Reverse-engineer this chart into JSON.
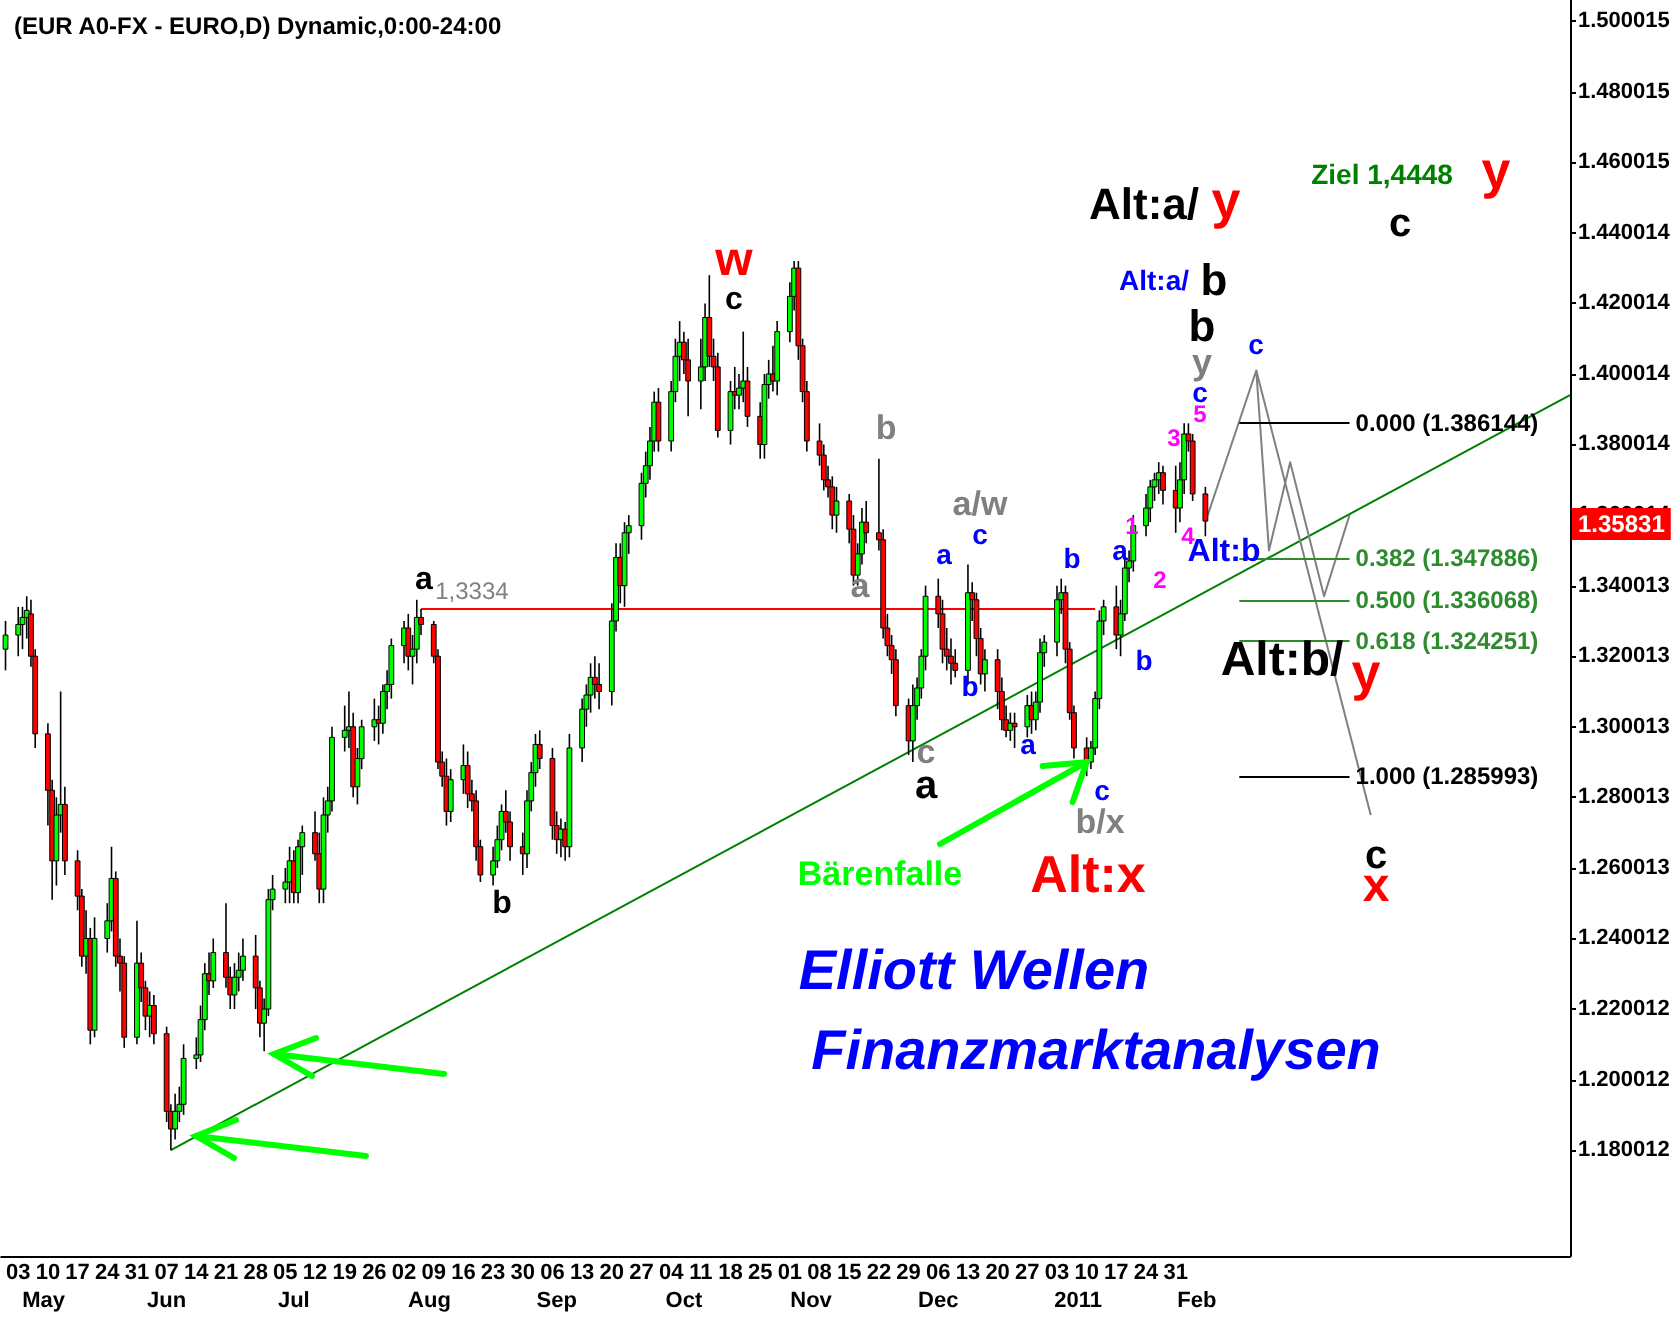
{
  "chart_data": {
    "type": "candlestick",
    "title": "(EUR A0-FX - EURO,D) Dynamic,0:00-24:00",
    "x": [
      "2010-04-30",
      "2010-05-03",
      "2010-05-04",
      "2010-05-05",
      "2010-05-06",
      "2010-05-07",
      "2010-05-10",
      "2010-05-11",
      "2010-05-12",
      "2010-05-13",
      "2010-05-14",
      "2010-05-17",
      "2010-05-18",
      "2010-05-19",
      "2010-05-20",
      "2010-05-21",
      "2010-05-24",
      "2010-05-25",
      "2010-05-26",
      "2010-05-27",
      "2010-05-28",
      "2010-05-31",
      "2010-06-01",
      "2010-06-02",
      "2010-06-03",
      "2010-06-04",
      "2010-06-07",
      "2010-06-08",
      "2010-06-09",
      "2010-06-10",
      "2010-06-11",
      "2010-06-14",
      "2010-06-15",
      "2010-06-16",
      "2010-06-17",
      "2010-06-18",
      "2010-06-21",
      "2010-06-22",
      "2010-06-23",
      "2010-06-24",
      "2010-06-25",
      "2010-06-28",
      "2010-06-29",
      "2010-06-30",
      "2010-07-01",
      "2010-07-02",
      "2010-07-05",
      "2010-07-06",
      "2010-07-07",
      "2010-07-08",
      "2010-07-09",
      "2010-07-12",
      "2010-07-13",
      "2010-07-14",
      "2010-07-15",
      "2010-07-16",
      "2010-07-19",
      "2010-07-20",
      "2010-07-21",
      "2010-07-22",
      "2010-07-23",
      "2010-07-26",
      "2010-07-27",
      "2010-07-28",
      "2010-07-29",
      "2010-07-30",
      "2010-08-02",
      "2010-08-03",
      "2010-08-04",
      "2010-08-05",
      "2010-08-06",
      "2010-08-09",
      "2010-08-10",
      "2010-08-11",
      "2010-08-12",
      "2010-08-13",
      "2010-08-16",
      "2010-08-17",
      "2010-08-18",
      "2010-08-19",
      "2010-08-20",
      "2010-08-23",
      "2010-08-24",
      "2010-08-25",
      "2010-08-26",
      "2010-08-27",
      "2010-08-30",
      "2010-08-31",
      "2010-09-01",
      "2010-09-02",
      "2010-09-03",
      "2010-09-06",
      "2010-09-07",
      "2010-09-08",
      "2010-09-09",
      "2010-09-10",
      "2010-09-13",
      "2010-09-14",
      "2010-09-15",
      "2010-09-16",
      "2010-09-17",
      "2010-09-20",
      "2010-09-21",
      "2010-09-22",
      "2010-09-23",
      "2010-09-24",
      "2010-09-27",
      "2010-09-28",
      "2010-09-29",
      "2010-09-30",
      "2010-10-01",
      "2010-10-04",
      "2010-10-05",
      "2010-10-06",
      "2010-10-07",
      "2010-10-08",
      "2010-10-11",
      "2010-10-12",
      "2010-10-13",
      "2010-10-14",
      "2010-10-15",
      "2010-10-18",
      "2010-10-19",
      "2010-10-20",
      "2010-10-21",
      "2010-10-22",
      "2010-10-25",
      "2010-10-26",
      "2010-10-27",
      "2010-10-28",
      "2010-10-29",
      "2010-11-01",
      "2010-11-02",
      "2010-11-03",
      "2010-11-04",
      "2010-11-05",
      "2010-11-08",
      "2010-11-09",
      "2010-11-10",
      "2010-11-11",
      "2010-11-12",
      "2010-11-15",
      "2010-11-16",
      "2010-11-17",
      "2010-11-18",
      "2010-11-19",
      "2010-11-22",
      "2010-11-23",
      "2010-11-24",
      "2010-11-25",
      "2010-11-26",
      "2010-11-29",
      "2010-11-30",
      "2010-12-01",
      "2010-12-02",
      "2010-12-03",
      "2010-12-06",
      "2010-12-07",
      "2010-12-08",
      "2010-12-09",
      "2010-12-10",
      "2010-12-13",
      "2010-12-14",
      "2010-12-15",
      "2010-12-16",
      "2010-12-17",
      "2010-12-20",
      "2010-12-21",
      "2010-12-22",
      "2010-12-23",
      "2010-12-24",
      "2010-12-27",
      "2010-12-28",
      "2010-12-29",
      "2010-12-30",
      "2010-12-31",
      "2011-01-03",
      "2011-01-04",
      "2011-01-05",
      "2011-01-06",
      "2011-01-07",
      "2011-01-10",
      "2011-01-11",
      "2011-01-12",
      "2011-01-13",
      "2011-01-14",
      "2011-01-17",
      "2011-01-18",
      "2011-01-19",
      "2011-01-20",
      "2011-01-21",
      "2011-01-24",
      "2011-01-25",
      "2011-01-26",
      "2011-01-27",
      "2011-01-28",
      "2011-01-31",
      "2011-02-01",
      "2011-02-02",
      "2011-02-03",
      "2011-02-04",
      "2011-02-07"
    ],
    "ohlc": [
      [
        1.322,
        1.33,
        1.316,
        1.326
      ],
      [
        1.326,
        1.334,
        1.32,
        1.329
      ],
      [
        1.329,
        1.334,
        1.322,
        1.331
      ],
      [
        1.331,
        1.337,
        1.325,
        1.333
      ],
      [
        1.332,
        1.336,
        1.317,
        1.32
      ],
      [
        1.32,
        1.322,
        1.294,
        1.298
      ],
      [
        1.298,
        1.301,
        1.272,
        1.282
      ],
      [
        1.282,
        1.285,
        1.251,
        1.262
      ],
      [
        1.262,
        1.28,
        1.255,
        1.275
      ],
      [
        1.275,
        1.31,
        1.27,
        1.278
      ],
      [
        1.278,
        1.283,
        1.258,
        1.262
      ],
      [
        1.262,
        1.265,
        1.248,
        1.252
      ],
      [
        1.252,
        1.254,
        1.232,
        1.235
      ],
      [
        1.235,
        1.248,
        1.23,
        1.24
      ],
      [
        1.24,
        1.243,
        1.21,
        1.214
      ],
      [
        1.214,
        1.246,
        1.212,
        1.24
      ],
      [
        1.24,
        1.25,
        1.236,
        1.245
      ],
      [
        1.245,
        1.266,
        1.242,
        1.257
      ],
      [
        1.257,
        1.259,
        1.232,
        1.235
      ],
      [
        1.235,
        1.24,
        1.225,
        1.233
      ],
      [
        1.233,
        1.235,
        1.209,
        1.212
      ],
      [
        1.212,
        1.245,
        1.21,
        1.233
      ],
      [
        1.233,
        1.236,
        1.222,
        1.226
      ],
      [
        1.226,
        1.228,
        1.214,
        1.218
      ],
      [
        1.218,
        1.225,
        1.212,
        1.221
      ],
      [
        1.221,
        1.224,
        1.21,
        1.213
      ],
      [
        1.213,
        1.215,
        1.188,
        1.191
      ],
      [
        1.191,
        1.193,
        1.18,
        1.186
      ],
      [
        1.186,
        1.196,
        1.183,
        1.191
      ],
      [
        1.191,
        1.198,
        1.188,
        1.193
      ],
      [
        1.193,
        1.21,
        1.19,
        1.206
      ],
      [
        1.206,
        1.212,
        1.203,
        1.207
      ],
      [
        1.207,
        1.221,
        1.205,
        1.217
      ],
      [
        1.217,
        1.233,
        1.214,
        1.23
      ],
      [
        1.23,
        1.236,
        1.224,
        1.228
      ],
      [
        1.228,
        1.24,
        1.226,
        1.236
      ],
      [
        1.236,
        1.25,
        1.226,
        1.229
      ],
      [
        1.229,
        1.232,
        1.22,
        1.224
      ],
      [
        1.224,
        1.233,
        1.22,
        1.229
      ],
      [
        1.229,
        1.236,
        1.225,
        1.231
      ],
      [
        1.231,
        1.24,
        1.228,
        1.235
      ],
      [
        1.235,
        1.241,
        1.22,
        1.226
      ],
      [
        1.226,
        1.228,
        1.212,
        1.216
      ],
      [
        1.216,
        1.223,
        1.208,
        1.22
      ],
      [
        1.22,
        1.254,
        1.218,
        1.251
      ],
      [
        1.251,
        1.258,
        1.248,
        1.254
      ],
      [
        1.254,
        1.26,
        1.25,
        1.256
      ],
      [
        1.256,
        1.266,
        1.25,
        1.262
      ],
      [
        1.262,
        1.265,
        1.25,
        1.253
      ],
      [
        1.253,
        1.268,
        1.25,
        1.266
      ],
      [
        1.266,
        1.272,
        1.258,
        1.27
      ],
      [
        1.27,
        1.276,
        1.262,
        1.264
      ],
      [
        1.264,
        1.27,
        1.25,
        1.254
      ],
      [
        1.254,
        1.28,
        1.25,
        1.275
      ],
      [
        1.275,
        1.283,
        1.27,
        1.279
      ],
      [
        1.279,
        1.3,
        1.276,
        1.297
      ],
      [
        1.297,
        1.306,
        1.293,
        1.299
      ],
      [
        1.299,
        1.31,
        1.294,
        1.3
      ],
      [
        1.3,
        1.304,
        1.28,
        1.283
      ],
      [
        1.283,
        1.294,
        1.278,
        1.291
      ],
      [
        1.291,
        1.302,
        1.288,
        1.3
      ],
      [
        1.3,
        1.308,
        1.296,
        1.302
      ],
      [
        1.302,
        1.306,
        1.295,
        1.301
      ],
      [
        1.301,
        1.312,
        1.298,
        1.31
      ],
      [
        1.31,
        1.316,
        1.305,
        1.312
      ],
      [
        1.312,
        1.325,
        1.308,
        1.323
      ],
      [
        1.323,
        1.33,
        1.318,
        1.328
      ],
      [
        1.328,
        1.332,
        1.316,
        1.32
      ],
      [
        1.32,
        1.326,
        1.312,
        1.322
      ],
      [
        1.322,
        1.336,
        1.318,
        1.331
      ],
      [
        1.331,
        1.3334,
        1.326,
        1.329
      ],
      [
        1.329,
        1.33,
        1.318,
        1.32
      ],
      [
        1.32,
        1.322,
        1.288,
        1.29
      ],
      [
        1.29,
        1.293,
        1.283,
        1.286
      ],
      [
        1.286,
        1.291,
        1.272,
        1.276
      ],
      [
        1.276,
        1.288,
        1.273,
        1.285
      ],
      [
        1.285,
        1.295,
        1.281,
        1.289
      ],
      [
        1.289,
        1.293,
        1.277,
        1.281
      ],
      [
        1.281,
        1.285,
        1.276,
        1.279
      ],
      [
        1.279,
        1.282,
        1.262,
        1.266
      ],
      [
        1.266,
        1.268,
        1.256,
        1.258
      ],
      [
        1.258,
        1.266,
        1.255,
        1.262
      ],
      [
        1.262,
        1.272,
        1.26,
        1.268
      ],
      [
        1.268,
        1.278,
        1.265,
        1.276
      ],
      [
        1.276,
        1.282,
        1.27,
        1.273
      ],
      [
        1.273,
        1.276,
        1.262,
        1.266
      ],
      [
        1.266,
        1.27,
        1.258,
        1.264
      ],
      [
        1.264,
        1.282,
        1.26,
        1.279
      ],
      [
        1.279,
        1.29,
        1.276,
        1.287
      ],
      [
        1.287,
        1.298,
        1.283,
        1.295
      ],
      [
        1.295,
        1.299,
        1.288,
        1.291
      ],
      [
        1.291,
        1.294,
        1.268,
        1.272
      ],
      [
        1.272,
        1.276,
        1.264,
        1.268
      ],
      [
        1.268,
        1.274,
        1.263,
        1.271
      ],
      [
        1.271,
        1.273,
        1.262,
        1.266
      ],
      [
        1.266,
        1.298,
        1.263,
        1.294
      ],
      [
        1.294,
        1.308,
        1.29,
        1.305
      ],
      [
        1.305,
        1.312,
        1.3,
        1.309
      ],
      [
        1.309,
        1.318,
        1.304,
        1.314
      ],
      [
        1.314,
        1.32,
        1.308,
        1.312
      ],
      [
        1.312,
        1.318,
        1.305,
        1.31
      ],
      [
        1.31,
        1.335,
        1.306,
        1.33
      ],
      [
        1.33,
        1.352,
        1.327,
        1.348
      ],
      [
        1.348,
        1.352,
        1.335,
        1.34
      ],
      [
        1.34,
        1.358,
        1.334,
        1.355
      ],
      [
        1.355,
        1.36,
        1.349,
        1.357
      ],
      [
        1.357,
        1.372,
        1.353,
        1.369
      ],
      [
        1.369,
        1.378,
        1.365,
        1.374
      ],
      [
        1.374,
        1.385,
        1.37,
        1.381
      ],
      [
        1.381,
        1.395,
        1.378,
        1.392
      ],
      [
        1.392,
        1.396,
        1.378,
        1.381
      ],
      [
        1.381,
        1.398,
        1.378,
        1.395
      ],
      [
        1.395,
        1.41,
        1.392,
        1.405
      ],
      [
        1.405,
        1.415,
        1.398,
        1.409
      ],
      [
        1.409,
        1.412,
        1.4,
        1.404
      ],
      [
        1.404,
        1.41,
        1.388,
        1.398
      ],
      [
        1.398,
        1.41,
        1.39,
        1.402
      ],
      [
        1.402,
        1.42,
        1.398,
        1.416
      ],
      [
        1.416,
        1.428,
        1.402,
        1.405
      ],
      [
        1.405,
        1.41,
        1.398,
        1.402
      ],
      [
        1.402,
        1.406,
        1.382,
        1.384
      ],
      [
        1.384,
        1.398,
        1.38,
        1.395
      ],
      [
        1.395,
        1.402,
        1.39,
        1.394
      ],
      [
        1.394,
        1.4,
        1.39,
        1.396
      ],
      [
        1.396,
        1.412,
        1.392,
        1.398
      ],
      [
        1.398,
        1.402,
        1.385,
        1.388
      ],
      [
        1.388,
        1.392,
        1.376,
        1.38
      ],
      [
        1.38,
        1.4,
        1.376,
        1.397
      ],
      [
        1.397,
        1.404,
        1.393,
        1.4
      ],
      [
        1.4,
        1.408,
        1.395,
        1.398
      ],
      [
        1.398,
        1.415,
        1.394,
        1.412
      ],
      [
        1.412,
        1.426,
        1.409,
        1.422
      ],
      [
        1.422,
        1.432,
        1.418,
        1.43
      ],
      [
        1.43,
        1.432,
        1.404,
        1.408
      ],
      [
        1.408,
        1.41,
        1.392,
        1.395
      ],
      [
        1.395,
        1.398,
        1.378,
        1.381
      ],
      [
        1.381,
        1.386,
        1.374,
        1.377
      ],
      [
        1.377,
        1.38,
        1.367,
        1.37
      ],
      [
        1.37,
        1.374,
        1.365,
        1.368
      ],
      [
        1.368,
        1.371,
        1.356,
        1.36
      ],
      [
        1.36,
        1.368,
        1.355,
        1.364
      ],
      [
        1.364,
        1.366,
        1.352,
        1.356
      ],
      [
        1.356,
        1.36,
        1.34,
        1.343
      ],
      [
        1.343,
        1.352,
        1.34,
        1.349
      ],
      [
        1.349,
        1.362,
        1.346,
        1.358
      ],
      [
        1.358,
        1.364,
        1.352,
        1.355
      ],
      [
        1.355,
        1.376,
        1.35,
        1.353
      ],
      [
        1.353,
        1.356,
        1.325,
        1.328
      ],
      [
        1.328,
        1.332,
        1.32,
        1.323
      ],
      [
        1.323,
        1.326,
        1.315,
        1.319
      ],
      [
        1.319,
        1.322,
        1.303,
        1.306
      ],
      [
        1.306,
        1.308,
        1.292,
        1.296
      ],
      [
        1.296,
        1.312,
        1.29,
        1.306
      ],
      [
        1.306,
        1.314,
        1.302,
        1.311
      ],
      [
        1.311,
        1.322,
        1.308,
        1.32
      ],
      [
        1.32,
        1.34,
        1.316,
        1.337
      ],
      [
        1.337,
        1.342,
        1.328,
        1.332
      ],
      [
        1.332,
        1.336,
        1.318,
        1.322
      ],
      [
        1.322,
        1.328,
        1.316,
        1.32
      ],
      [
        1.32,
        1.325,
        1.312,
        1.318
      ],
      [
        1.318,
        1.322,
        1.314,
        1.316
      ],
      [
        1.316,
        1.346,
        1.312,
        1.338
      ],
      [
        1.338,
        1.341,
        1.33,
        1.336
      ],
      [
        1.336,
        1.338,
        1.32,
        1.325
      ],
      [
        1.325,
        1.328,
        1.312,
        1.315
      ],
      [
        1.315,
        1.322,
        1.31,
        1.319
      ],
      [
        1.319,
        1.322,
        1.305,
        1.31
      ],
      [
        1.31,
        1.314,
        1.299,
        1.302
      ],
      [
        1.302,
        1.306,
        1.297,
        1.299
      ],
      [
        1.299,
        1.304,
        1.296,
        1.301
      ],
      [
        1.301,
        1.304,
        1.294,
        1.3
      ],
      [
        1.3,
        1.309,
        1.297,
        1.306
      ],
      [
        1.306,
        1.31,
        1.298,
        1.302
      ],
      [
        1.302,
        1.31,
        1.299,
        1.307
      ],
      [
        1.307,
        1.325,
        1.304,
        1.321
      ],
      [
        1.321,
        1.326,
        1.317,
        1.324
      ],
      [
        1.324,
        1.34,
        1.32,
        1.336
      ],
      [
        1.336,
        1.342,
        1.332,
        1.338
      ],
      [
        1.338,
        1.34,
        1.318,
        1.322
      ],
      [
        1.322,
        1.324,
        1.302,
        1.304
      ],
      [
        1.304,
        1.306,
        1.291,
        1.294
      ],
      [
        1.294,
        1.297,
        1.286,
        1.29
      ],
      [
        1.29,
        1.296,
        1.288,
        1.294
      ],
      [
        1.294,
        1.31,
        1.292,
        1.308
      ],
      [
        1.308,
        1.333,
        1.305,
        1.33
      ],
      [
        1.33,
        1.336,
        1.326,
        1.334
      ],
      [
        1.334,
        1.34,
        1.322,
        1.326
      ],
      [
        1.326,
        1.336,
        1.32,
        1.332
      ],
      [
        1.332,
        1.348,
        1.33,
        1.345
      ],
      [
        1.345,
        1.35,
        1.341,
        1.347
      ],
      [
        1.347,
        1.36,
        1.344,
        1.357
      ],
      [
        1.357,
        1.366,
        1.354,
        1.362
      ],
      [
        1.362,
        1.37,
        1.358,
        1.368
      ],
      [
        1.368,
        1.372,
        1.364,
        1.37
      ],
      [
        1.37,
        1.375,
        1.366,
        1.372
      ],
      [
        1.372,
        1.374,
        1.363,
        1.367
      ],
      [
        1.367,
        1.374,
        1.355,
        1.362
      ],
      [
        1.362,
        1.375,
        1.358,
        1.37
      ],
      [
        1.37,
        1.386,
        1.366,
        1.383
      ],
      [
        1.383,
        1.386,
        1.378,
        1.381
      ],
      [
        1.381,
        1.383,
        1.364,
        1.366
      ],
      [
        1.366,
        1.368,
        1.354,
        1.35831
      ]
    ],
    "series": [
      {
        "type": "line",
        "color": "#008000",
        "x": [
          "2010-06-08",
          "2011-05-04"
        ],
        "values": [
          1.18,
          1.394
        ]
      },
      {
        "type": "line",
        "color": "#ff0000",
        "x": [
          "2010-08-06",
          "2011-01-12"
        ],
        "values": [
          1.3334,
          1.3334
        ]
      },
      {
        "type": "line",
        "color": "#808080",
        "x": [
          "2011-02-07",
          "2011-02-19",
          "2011-02-22",
          "2011-02-27",
          "2011-03-07",
          "2011-03-13"
        ],
        "values": [
          1.358,
          1.401,
          1.35,
          1.375,
          1.337,
          1.36
        ]
      },
      {
        "type": "line",
        "color": "#808080",
        "x": [
          "2011-02-19",
          "2011-03-18"
        ],
        "values": [
          1.401,
          1.275
        ]
      }
    ],
    "marker": "none",
    "xlim": [
      "2010-04-29",
      "2011-05-04"
    ],
    "x2lim": [
      "2010-04-29",
      "2011-05-04"
    ],
    "ylim": [
      1.15,
      1.506
    ],
    "xticks": [
      {
        "value": "2010-05-03",
        "label": "03"
      },
      {
        "value": "2010-05-10",
        "label": "10"
      },
      {
        "value": "2010-05-17",
        "label": "17"
      },
      {
        "value": "2010-05-24",
        "label": "24"
      },
      {
        "value": "2010-05-31",
        "label": "31"
      },
      {
        "value": "2010-06-07",
        "label": "07"
      },
      {
        "value": "2010-06-14",
        "label": "14"
      },
      {
        "value": "2010-06-21",
        "label": "21"
      },
      {
        "value": "2010-06-28",
        "label": "28"
      },
      {
        "value": "2010-07-05",
        "label": "05"
      },
      {
        "value": "2010-07-12",
        "label": "12"
      },
      {
        "value": "2010-07-19",
        "label": "19"
      },
      {
        "value": "2010-07-26",
        "label": "26"
      },
      {
        "value": "2010-08-02",
        "label": "02"
      },
      {
        "value": "2010-08-09",
        "label": "09"
      },
      {
        "value": "2010-08-16",
        "label": "16"
      },
      {
        "value": "2010-08-23",
        "label": "23"
      },
      {
        "value": "2010-08-30",
        "label": "30"
      },
      {
        "value": "2010-09-06",
        "label": "06"
      },
      {
        "value": "2010-09-13",
        "label": "13"
      },
      {
        "value": "2010-09-20",
        "label": "20"
      },
      {
        "value": "2010-09-27",
        "label": "27"
      },
      {
        "value": "2010-10-04",
        "label": "04"
      },
      {
        "value": "2010-10-11",
        "label": "11"
      },
      {
        "value": "2010-10-18",
        "label": "18"
      },
      {
        "value": "2010-10-25",
        "label": "25"
      },
      {
        "value": "2010-11-01",
        "label": "01"
      },
      {
        "value": "2010-11-08",
        "label": "08"
      },
      {
        "value": "2010-11-15",
        "label": "15"
      },
      {
        "value": "2010-11-22",
        "label": "22"
      },
      {
        "value": "2010-11-29",
        "label": "29"
      },
      {
        "value": "2010-12-06",
        "label": "06"
      },
      {
        "value": "2010-12-13",
        "label": "13"
      },
      {
        "value": "2010-12-20",
        "label": "20"
      },
      {
        "value": "2010-12-27",
        "label": "27"
      },
      {
        "value": "2011-01-03",
        "label": "03"
      },
      {
        "value": "2011-01-10",
        "label": "10"
      },
      {
        "value": "2011-01-17",
        "label": "17"
      },
      {
        "value": "2011-01-24",
        "label": "24"
      },
      {
        "value": "2011-01-31",
        "label": "31"
      }
    ],
    "x2ticks": [
      {
        "value": "2010-05-09",
        "label": "May"
      },
      {
        "value": "2010-06-07",
        "label": "Jun"
      },
      {
        "value": "2010-07-07",
        "label": "Jul"
      },
      {
        "value": "2010-08-08",
        "label": "Aug"
      },
      {
        "value": "2010-09-07",
        "label": "Sep"
      },
      {
        "value": "2010-10-07",
        "label": "Oct"
      },
      {
        "value": "2010-11-06",
        "label": "Nov"
      },
      {
        "value": "2010-12-06",
        "label": "Dec"
      },
      {
        "value": "2011-01-08",
        "label": "2011"
      },
      {
        "value": "2011-02-05",
        "label": "Feb"
      }
    ],
    "yticks": [
      1.180012,
      1.200012,
      1.220012,
      1.240012,
      1.260013,
      1.280013,
      1.300013,
      1.320013,
      1.340013,
      1.360014,
      1.380014,
      1.400014,
      1.420014,
      1.440014,
      1.460015,
      1.480015,
      1.500015
    ],
    "ref_lines": [
      {
        "axis": "y",
        "value": 1.386144,
        "label": "0.000 (1.386144)",
        "color": "#000000"
      },
      {
        "axis": "y",
        "value": 1.347886,
        "label": "0.382 (1.347886)",
        "color": "#2e8b2e"
      },
      {
        "axis": "y",
        "value": 1.336068,
        "label": "0.500 (1.336068)",
        "color": "#2e8b2e"
      },
      {
        "axis": "y",
        "value": 1.324251,
        "label": "0.618 (1.324251)",
        "color": "#2e8b2e"
      },
      {
        "axis": "y",
        "value": 1.285993,
        "label": "1.000 (1.285993)",
        "color": "#000000"
      }
    ],
    "annotations": [
      "w",
      "c",
      "a",
      {
        "text": "1,3334",
        "x": "2010-08-18",
        "y": 1.3334
      },
      "b",
      "b",
      "a",
      "a/w",
      "c",
      "a",
      "b",
      "c",
      "a",
      "a",
      "b",
      "c",
      "b/x",
      "a",
      "b",
      "1",
      "2",
      "3",
      "4",
      "5",
      "c",
      "y",
      "b",
      "c",
      "Alt:a/",
      "b",
      "Alt:a/",
      "y",
      "Ziel 1,4448",
      "y",
      "c",
      "Alt:b",
      "Alt:b/",
      "y",
      "c",
      "x",
      "Alt:x",
      "1.35831",
      {
        "text": "Bärenfalle",
        "x": "2011-01-10",
        "y": 1.29
      },
      "Elliott Wellen",
      "Finanzmarktanalysen"
    ]
  }
}
